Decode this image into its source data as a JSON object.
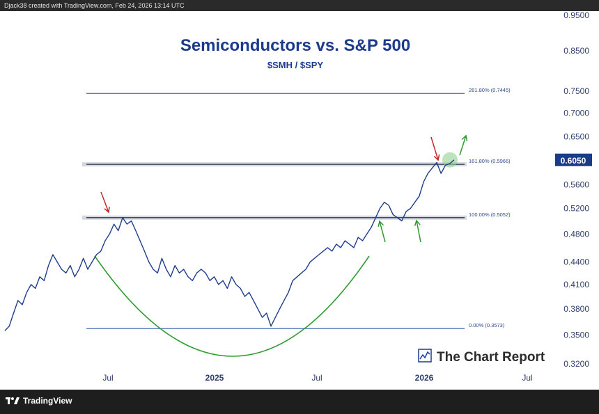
{
  "header": {
    "attribution": "Djack38 created with TradingView.com, Feb 24, 2026 13:14 UTC"
  },
  "footer": {
    "platform_name": "TradingView"
  },
  "watermark": {
    "text": "The Chart Report"
  },
  "chart_data": {
    "type": "line",
    "title": "Semiconductors vs. S&P 500",
    "subtitle": "$SMH / $SPY",
    "colors": {
      "line": "#1e3c8c",
      "title": "#1a3b8c",
      "fib": "#1a52a8",
      "arc": "#2e9b2e",
      "up_arrow": "#2e9b2e",
      "down_arrow": "#c62828",
      "badge": "#1a3b8c",
      "highlight": "#8fd18f"
    },
    "x_ticks": [
      "Jul",
      "2025",
      "Jul",
      "2026",
      "Jul"
    ],
    "y_ticks": [
      "0.9500",
      "0.8500",
      "0.7500",
      "0.7000",
      "0.6500",
      "0.5600",
      "0.5200",
      "0.4800",
      "0.4400",
      "0.4100",
      "0.3800",
      "0.3500",
      "0.3200"
    ],
    "y_scale": "log",
    "ylim": [
      0.32,
      0.95
    ],
    "current_value": "0.6050",
    "fib_levels": [
      {
        "label": "261.80% (0.7445)",
        "value": 0.7445
      },
      {
        "label": "161.80% (0.5966)",
        "value": 0.5966
      },
      {
        "label": "100.00% (0.5052)",
        "value": 0.5052
      },
      {
        "label": "0.00% (0.3573)",
        "value": 0.3573
      }
    ],
    "series": [
      {
        "values": [
          0.355,
          0.36,
          0.375,
          0.39,
          0.385,
          0.4,
          0.41,
          0.405,
          0.42,
          0.415,
          0.435,
          0.45,
          0.44,
          0.43,
          0.425,
          0.435,
          0.42,
          0.43,
          0.445,
          0.43,
          0.44,
          0.45,
          0.455,
          0.47,
          0.48,
          0.495,
          0.485,
          0.505,
          0.495,
          0.5,
          0.485,
          0.47,
          0.455,
          0.44,
          0.43,
          0.425,
          0.445,
          0.43,
          0.42,
          0.435,
          0.425,
          0.43,
          0.42,
          0.415,
          0.425,
          0.43,
          0.425,
          0.415,
          0.42,
          0.41,
          0.415,
          0.405,
          0.42,
          0.41,
          0.405,
          0.395,
          0.4,
          0.39,
          0.38,
          0.37,
          0.375,
          0.36,
          0.37,
          0.38,
          0.39,
          0.4,
          0.415,
          0.42,
          0.425,
          0.43,
          0.44,
          0.445,
          0.45,
          0.455,
          0.46,
          0.455,
          0.465,
          0.46,
          0.47,
          0.465,
          0.46,
          0.475,
          0.47,
          0.48,
          0.49,
          0.505,
          0.52,
          0.53,
          0.525,
          0.51,
          0.505,
          0.5,
          0.515,
          0.52,
          0.53,
          0.54,
          0.565,
          0.58,
          0.59,
          0.6,
          0.58,
          0.595,
          0.598,
          0.605
        ]
      }
    ]
  }
}
